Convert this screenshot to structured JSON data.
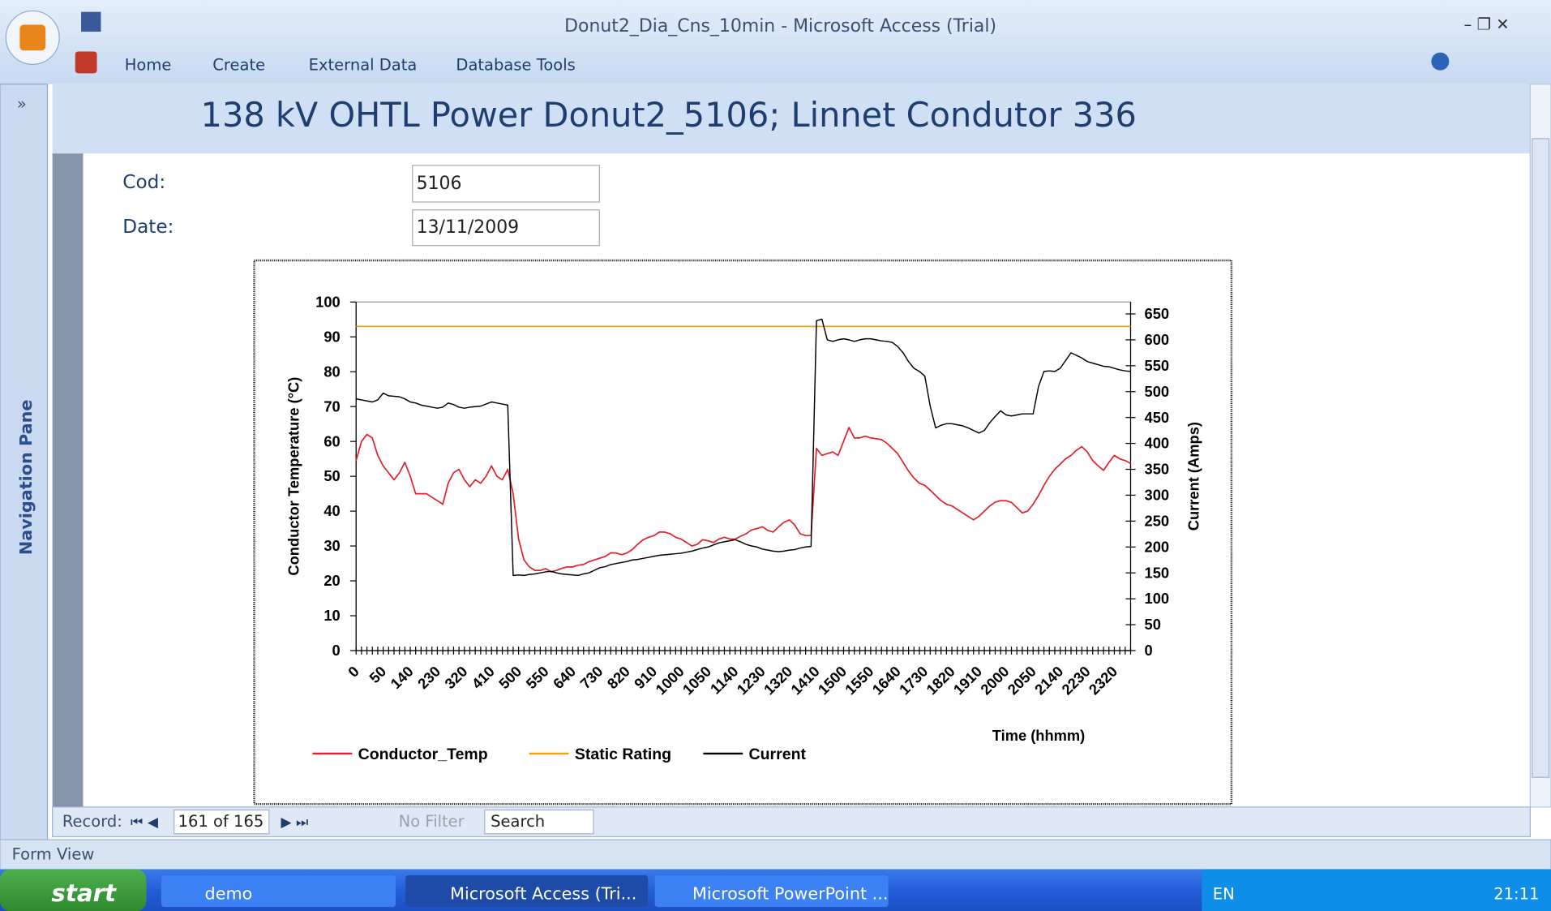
{
  "window": {
    "title": "Donut2_Dia_Cns_10min - Microsoft Access (Trial)",
    "tabs": [
      "Home",
      "Create",
      "External Data",
      "Database Tools"
    ],
    "nav_toggle": "»",
    "navigation_pane": "Navigation Pane"
  },
  "form": {
    "title": "138 kV OHTL Power Donut2_5106; Linnet Condutor 336",
    "fields": [
      {
        "label": "Cod:",
        "value": "5106"
      },
      {
        "label": "Date:",
        "value": "13/11/2009"
      }
    ]
  },
  "record_nav": {
    "label": "Record:",
    "position": "161 of 165",
    "filter": "No Filter",
    "search": "Search"
  },
  "status_bar": "Form View",
  "taskbar": {
    "start": "start",
    "items": [
      "demo",
      "Microsoft Access (Tri...",
      "Microsoft PowerPoint ..."
    ],
    "language": "EN",
    "clock": "21:11"
  },
  "chart_data": {
    "type": "line",
    "x_label": "Time (hhmm)",
    "y_label": "Conductor Temperature (°C)",
    "y2_label": "Current (Amps)",
    "categories": [
      "0",
      null,
      null,
      null,
      null,
      "50",
      null,
      null,
      null,
      null,
      "140",
      null,
      null,
      null,
      null,
      "230",
      null,
      null,
      null,
      null,
      "320",
      null,
      null,
      null,
      null,
      "410",
      null,
      null,
      null,
      null,
      "500",
      null,
      null,
      null,
      null,
      "550",
      null,
      null,
      null,
      null,
      "640",
      null,
      null,
      null,
      null,
      "730",
      null,
      null,
      null,
      null,
      "820",
      null,
      null,
      null,
      null,
      "910",
      null,
      null,
      null,
      null,
      "1000",
      null,
      null,
      null,
      null,
      "1050",
      null,
      null,
      null,
      null,
      "1140",
      null,
      null,
      null,
      null,
      "1230",
      null,
      null,
      null,
      null,
      "1320",
      null,
      null,
      null,
      null,
      "1410",
      null,
      null,
      null,
      null,
      "1500",
      null,
      null,
      null,
      null,
      "1550",
      null,
      null,
      null,
      null,
      "1640",
      null,
      null,
      null,
      null,
      "1730",
      null,
      null,
      null,
      null,
      "1820",
      null,
      null,
      null,
      null,
      "1910",
      null,
      null,
      null,
      null,
      "2000",
      null,
      null,
      null,
      null,
      "2050",
      null,
      null,
      null,
      null,
      "2140",
      null,
      null,
      null,
      null,
      "2230",
      null,
      null,
      null,
      null,
      "2320",
      null,
      null,
      null
    ],
    "series": [
      {
        "name": "Conductor_Temp",
        "color": "#e3202c",
        "values": [
          54.5,
          60,
          62,
          61,
          56,
          53,
          51,
          49,
          51,
          54,
          50,
          45,
          45,
          45,
          44,
          43,
          42,
          48,
          51,
          52,
          49,
          47,
          49,
          48,
          50,
          53,
          50,
          49,
          52,
          45,
          32,
          26,
          24,
          23,
          23,
          23.5,
          22.6,
          23,
          23.6,
          24,
          24,
          24.5,
          24.7,
          25.5,
          26,
          26.5,
          27,
          28,
          28,
          27.5,
          28,
          29,
          30.5,
          31.8,
          32.5,
          33,
          34,
          34,
          33.5,
          32.5,
          32,
          31,
          30,
          30.5,
          31.8,
          31.5,
          31,
          32,
          32.5,
          32,
          32,
          32.8,
          33.5,
          34.6,
          35,
          35.5,
          34.5,
          34,
          35.5,
          36.8,
          37.5,
          36,
          33.5,
          33,
          33,
          58,
          56,
          56.5,
          57,
          56,
          60,
          64,
          61,
          61,
          61.5,
          61,
          60.8,
          60.5,
          59.5,
          58,
          56.5,
          54,
          51.5,
          49.5,
          48,
          47.4,
          46,
          44.5,
          43,
          42,
          41.5,
          40.5,
          39.5,
          38.5,
          37.5,
          38.5,
          40,
          41.5,
          42.6,
          43,
          43,
          42.5,
          41,
          39.5,
          40,
          42,
          44.5,
          47.4,
          50,
          52,
          53.5,
          55,
          56,
          57.5,
          58.5,
          57,
          54.5,
          53,
          51.7,
          54,
          56,
          55,
          54.5,
          53.7
        ]
      },
      {
        "name": "Static Rating",
        "color": "#f0a30a",
        "values": [
          93,
          93,
          93,
          93,
          93,
          93,
          93,
          93,
          93,
          93,
          93,
          93,
          93,
          93,
          93,
          93,
          93,
          93,
          93,
          93,
          93,
          93,
          93,
          93,
          93,
          93,
          93,
          93,
          93,
          93,
          93,
          93,
          93,
          93,
          93,
          93,
          93,
          93,
          93,
          93,
          93,
          93,
          93,
          93,
          93,
          93,
          93,
          93,
          93,
          93,
          93,
          93,
          93,
          93,
          93,
          93,
          93,
          93,
          93,
          93,
          93,
          93,
          93,
          93,
          93,
          93,
          93,
          93,
          93,
          93,
          93,
          93,
          93,
          93,
          93,
          93,
          93,
          93,
          93,
          93,
          93,
          93,
          93,
          93,
          93,
          93,
          93,
          93,
          93,
          93,
          93,
          93,
          93,
          93,
          93,
          93,
          93,
          93,
          93,
          93,
          93,
          93,
          93,
          93,
          93,
          93,
          93,
          93,
          93,
          93,
          93,
          93,
          93,
          93,
          93,
          93,
          93,
          93,
          93,
          93,
          93,
          93,
          93,
          93,
          93,
          93,
          93,
          93,
          93,
          93,
          93,
          93,
          93,
          93,
          93,
          93,
          93,
          93,
          93,
          93,
          93,
          93,
          93,
          93
        ]
      },
      {
        "name": "Current",
        "color": "#000000",
        "axis": "y2",
        "values": [
          486,
          484,
          482,
          480,
          484,
          497,
          492,
          491,
          490,
          486,
          480,
          478,
          474,
          472,
          470,
          468,
          470,
          478,
          475,
          470,
          468,
          470,
          471,
          472,
          476,
          480,
          478,
          476,
          474,
          145,
          146,
          145,
          147,
          148,
          150,
          152,
          153,
          150,
          148,
          147,
          146,
          145,
          148,
          150,
          155,
          160,
          162,
          166,
          168,
          170,
          172,
          175,
          176,
          178,
          180,
          182,
          184,
          185,
          186,
          187,
          188,
          190,
          192,
          195,
          198,
          200,
          204,
          208,
          210,
          212,
          214,
          210,
          205,
          202,
          200,
          196,
          194,
          192,
          191,
          192,
          194,
          195,
          198,
          200,
          201,
          637,
          640,
          600,
          597,
          600,
          602,
          600,
          597,
          600,
          602,
          602,
          600,
          598,
          597,
          595,
          587,
          575,
          558,
          545,
          539,
          530,
          472,
          430,
          435,
          438,
          438,
          436,
          434,
          430,
          425,
          420,
          425,
          440,
          452,
          463,
          455,
          453,
          455,
          457,
          457,
          457,
          510,
          539,
          540,
          539,
          545,
          560,
          575,
          570,
          565,
          558,
          555,
          552,
          549,
          548,
          545,
          542,
          540,
          539
        ]
      }
    ],
    "ylim": [
      0,
      100
    ],
    "yticks": [
      0,
      10,
      20,
      30,
      40,
      50,
      60,
      70,
      80,
      90,
      100
    ],
    "y2lim": [
      0,
      673
    ],
    "y2ticks": [
      0,
      50,
      100,
      150,
      200,
      250,
      300,
      350,
      400,
      450,
      500,
      550,
      600,
      650
    ],
    "grid": false,
    "legend": "bottom"
  }
}
